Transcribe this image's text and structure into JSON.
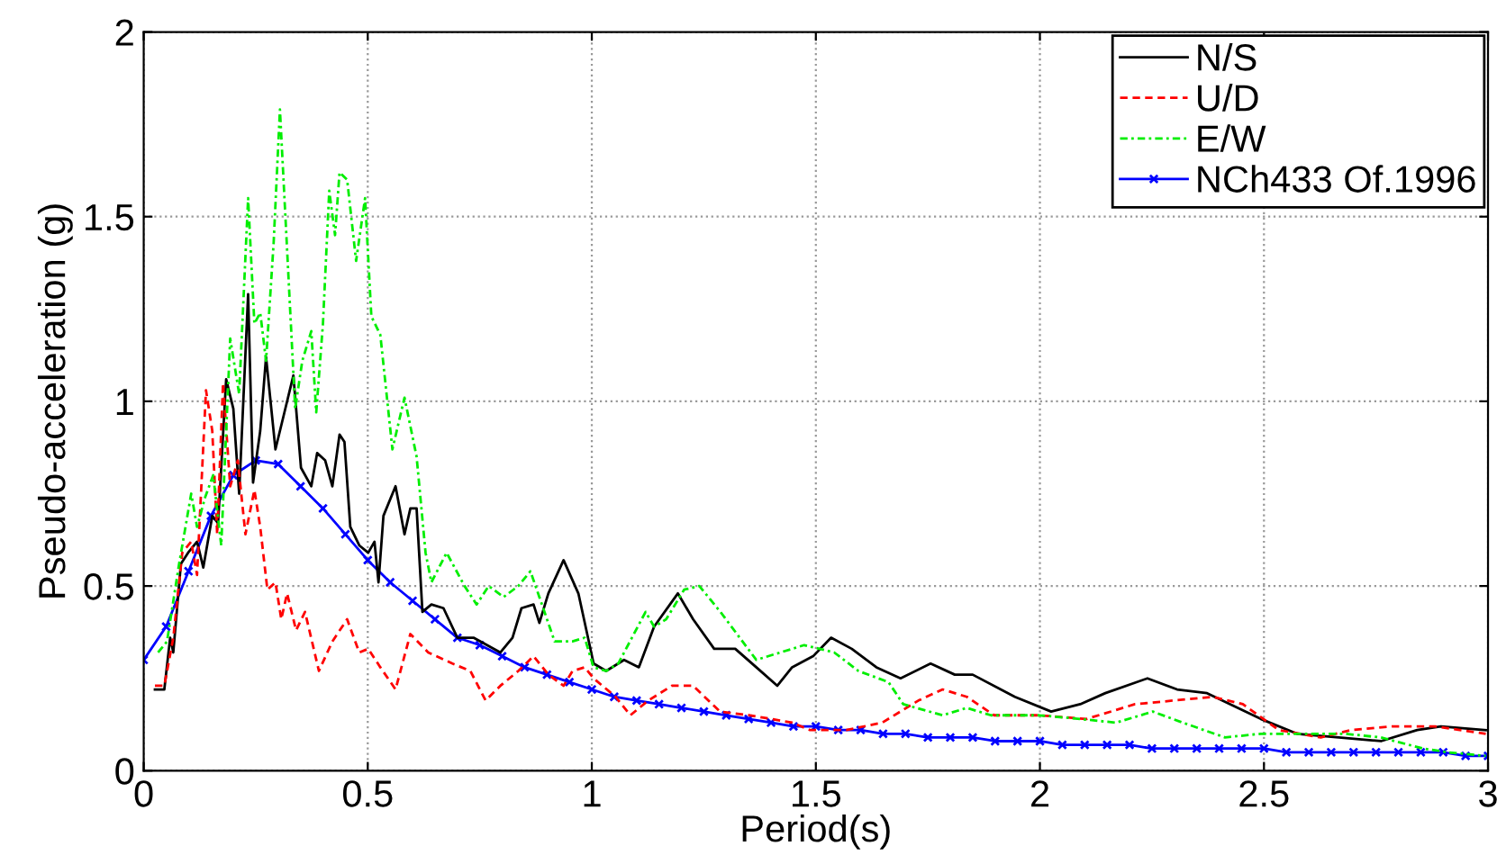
{
  "chart_data": {
    "type": "line",
    "xlabel": "Period(s)",
    "ylabel": "Pseudo-acceleration (g)",
    "xlim": [
      0,
      3
    ],
    "ylim": [
      0,
      2
    ],
    "xticks": [
      0,
      0.5,
      1,
      1.5,
      2,
      2.5,
      3
    ],
    "yticks": [
      0,
      0.5,
      1,
      1.5,
      2
    ],
    "grid": true,
    "legend": "top right",
    "series": [
      {
        "name": "N/S",
        "color": "#000000",
        "line_style": "solid",
        "marker": "none",
        "x": [
          0.025,
          0.046,
          0.059,
          0.066,
          0.083,
          0.099,
          0.119,
          0.133,
          0.153,
          0.166,
          0.184,
          0.2,
          0.213,
          0.233,
          0.244,
          0.26,
          0.273,
          0.294,
          0.314,
          0.334,
          0.351,
          0.374,
          0.387,
          0.405,
          0.421,
          0.437,
          0.448,
          0.461,
          0.481,
          0.501,
          0.515,
          0.524,
          0.535,
          0.562,
          0.582,
          0.595,
          0.609,
          0.622,
          0.642,
          0.669,
          0.7,
          0.736,
          0.796,
          0.823,
          0.843,
          0.87,
          0.883,
          0.903,
          0.937,
          0.97,
          1.004,
          1.032,
          1.072,
          1.105,
          1.139,
          1.192,
          1.226,
          1.273,
          1.32,
          1.367,
          1.414,
          1.447,
          1.494,
          1.534,
          1.58,
          1.635,
          1.689,
          1.756,
          1.81,
          1.85,
          1.944,
          2.025,
          2.09,
          2.146,
          2.24,
          2.306,
          2.373,
          2.493,
          2.574,
          2.667,
          2.761,
          2.842,
          2.895,
          2.995
        ],
        "values": [
          0.22,
          0.22,
          0.36,
          0.32,
          0.56,
          0.59,
          0.62,
          0.55,
          0.69,
          0.67,
          1.06,
          0.98,
          0.75,
          1.29,
          0.78,
          0.92,
          1.12,
          0.87,
          0.97,
          1.07,
          0.82,
          0.77,
          0.86,
          0.84,
          0.77,
          0.91,
          0.89,
          0.66,
          0.61,
          0.59,
          0.62,
          0.51,
          0.69,
          0.77,
          0.64,
          0.71,
          0.71,
          0.43,
          0.45,
          0.44,
          0.36,
          0.36,
          0.32,
          0.36,
          0.44,
          0.45,
          0.4,
          0.48,
          0.57,
          0.48,
          0.29,
          0.27,
          0.3,
          0.28,
          0.39,
          0.48,
          0.41,
          0.33,
          0.33,
          0.28,
          0.23,
          0.28,
          0.31,
          0.36,
          0.33,
          0.28,
          0.25,
          0.29,
          0.26,
          0.26,
          0.2,
          0.16,
          0.18,
          0.21,
          0.25,
          0.22,
          0.21,
          0.14,
          0.1,
          0.09,
          0.08,
          0.11,
          0.12,
          0.11
        ]
      },
      {
        "name": "U/D",
        "color": "#ff0000",
        "line_style": "dashed",
        "marker": "none",
        "x": [
          0.025,
          0.046,
          0.066,
          0.086,
          0.106,
          0.119,
          0.139,
          0.153,
          0.164,
          0.177,
          0.193,
          0.21,
          0.227,
          0.247,
          0.26,
          0.276,
          0.294,
          0.307,
          0.32,
          0.34,
          0.36,
          0.391,
          0.421,
          0.454,
          0.481,
          0.501,
          0.528,
          0.562,
          0.595,
          0.635,
          0.689,
          0.729,
          0.763,
          0.796,
          0.836,
          0.87,
          0.903,
          0.937,
          0.957,
          0.984,
          1.004,
          1.053,
          1.086,
          1.126,
          1.179,
          1.226,
          1.286,
          1.353,
          1.447,
          1.487,
          1.568,
          1.648,
          1.729,
          1.783,
          1.837,
          1.898,
          1.998,
          2.104,
          2.212,
          2.386,
          2.453,
          2.533,
          2.627,
          2.694,
          2.788,
          2.882,
          2.995
        ],
        "values": [
          0.23,
          0.23,
          0.36,
          0.59,
          0.62,
          0.53,
          1.03,
          0.92,
          0.64,
          1.05,
          0.77,
          0.84,
          0.64,
          0.76,
          0.66,
          0.49,
          0.51,
          0.41,
          0.48,
          0.38,
          0.43,
          0.27,
          0.35,
          0.41,
          0.32,
          0.33,
          0.28,
          0.22,
          0.37,
          0.32,
          0.29,
          0.27,
          0.19,
          0.23,
          0.27,
          0.31,
          0.26,
          0.23,
          0.27,
          0.28,
          0.25,
          0.2,
          0.15,
          0.19,
          0.23,
          0.23,
          0.16,
          0.15,
          0.13,
          0.11,
          0.11,
          0.13,
          0.19,
          0.22,
          0.2,
          0.15,
          0.15,
          0.14,
          0.18,
          0.2,
          0.18,
          0.11,
          0.09,
          0.11,
          0.12,
          0.12,
          0.1
        ]
      },
      {
        "name": "E/W",
        "color": "#00ee00",
        "line_style": "dashdot",
        "marker": "none",
        "x": [
          0.032,
          0.052,
          0.079,
          0.106,
          0.119,
          0.137,
          0.155,
          0.173,
          0.193,
          0.213,
          0.233,
          0.247,
          0.26,
          0.273,
          0.29,
          0.304,
          0.32,
          0.338,
          0.354,
          0.374,
          0.385,
          0.4,
          0.414,
          0.427,
          0.437,
          0.454,
          0.474,
          0.494,
          0.508,
          0.528,
          0.555,
          0.582,
          0.609,
          0.629,
          0.642,
          0.676,
          0.716,
          0.743,
          0.77,
          0.803,
          0.836,
          0.863,
          0.883,
          0.917,
          0.957,
          0.984,
          1.004,
          1.032,
          1.059,
          1.12,
          1.139,
          1.166,
          1.206,
          1.24,
          1.287,
          1.367,
          1.474,
          1.541,
          1.595,
          1.662,
          1.695,
          1.783,
          1.837,
          1.891,
          1.998,
          2.09,
          2.17,
          2.252,
          2.319,
          2.413,
          2.493,
          2.587,
          2.681,
          2.761,
          2.855,
          2.909,
          2.995
        ],
        "values": [
          0.32,
          0.35,
          0.56,
          0.75,
          0.66,
          0.74,
          0.8,
          0.61,
          1.17,
          1.02,
          1.55,
          1.21,
          1.24,
          1.11,
          1.43,
          1.79,
          1.41,
          0.98,
          1.11,
          1.19,
          0.97,
          1.21,
          1.57,
          1.45,
          1.62,
          1.6,
          1.38,
          1.55,
          1.23,
          1.18,
          0.87,
          1.01,
          0.85,
          0.59,
          0.51,
          0.59,
          0.5,
          0.45,
          0.5,
          0.47,
          0.5,
          0.54,
          0.47,
          0.35,
          0.35,
          0.36,
          0.28,
          0.27,
          0.29,
          0.43,
          0.39,
          0.41,
          0.49,
          0.5,
          0.43,
          0.3,
          0.34,
          0.32,
          0.27,
          0.24,
          0.18,
          0.15,
          0.17,
          0.15,
          0.15,
          0.14,
          0.13,
          0.16,
          0.13,
          0.09,
          0.1,
          0.1,
          0.1,
          0.09,
          0.06,
          0.05,
          0.04
        ]
      },
      {
        "name": "NCh433 Of.1996",
        "color": "#0000ff",
        "line_style": "solid",
        "marker": "cross",
        "x": [
          0,
          0.05,
          0.1,
          0.15,
          0.2,
          0.25,
          0.3,
          0.35,
          0.4,
          0.45,
          0.5,
          0.55,
          0.6,
          0.65,
          0.7,
          0.75,
          0.8,
          0.85,
          0.9,
          0.95,
          1,
          1.05,
          1.1,
          1.15,
          1.2,
          1.25,
          1.3,
          1.35,
          1.4,
          1.45,
          1.5,
          1.55,
          1.6,
          1.65,
          1.7,
          1.75,
          1.8,
          1.85,
          1.9,
          1.95,
          2,
          2.05,
          2.1,
          2.15,
          2.2,
          2.25,
          2.3,
          2.35,
          2.4,
          2.45,
          2.5,
          2.55,
          2.6,
          2.65,
          2.7,
          2.75,
          2.8,
          2.85,
          2.9,
          2.95,
          3
        ],
        "values": [
          0.3,
          0.39,
          0.54,
          0.69,
          0.8,
          0.84,
          0.83,
          0.77,
          0.71,
          0.64,
          0.57,
          0.51,
          0.46,
          0.41,
          0.36,
          0.34,
          0.31,
          0.28,
          0.26,
          0.24,
          0.22,
          0.2,
          0.19,
          0.18,
          0.17,
          0.16,
          0.15,
          0.14,
          0.13,
          0.12,
          0.12,
          0.11,
          0.11,
          0.1,
          0.1,
          0.09,
          0.09,
          0.09,
          0.08,
          0.08,
          0.08,
          0.07,
          0.07,
          0.07,
          0.07,
          0.06,
          0.06,
          0.06,
          0.06,
          0.06,
          0.06,
          0.05,
          0.05,
          0.05,
          0.05,
          0.05,
          0.05,
          0.05,
          0.05,
          0.04,
          0.04
        ]
      }
    ]
  }
}
